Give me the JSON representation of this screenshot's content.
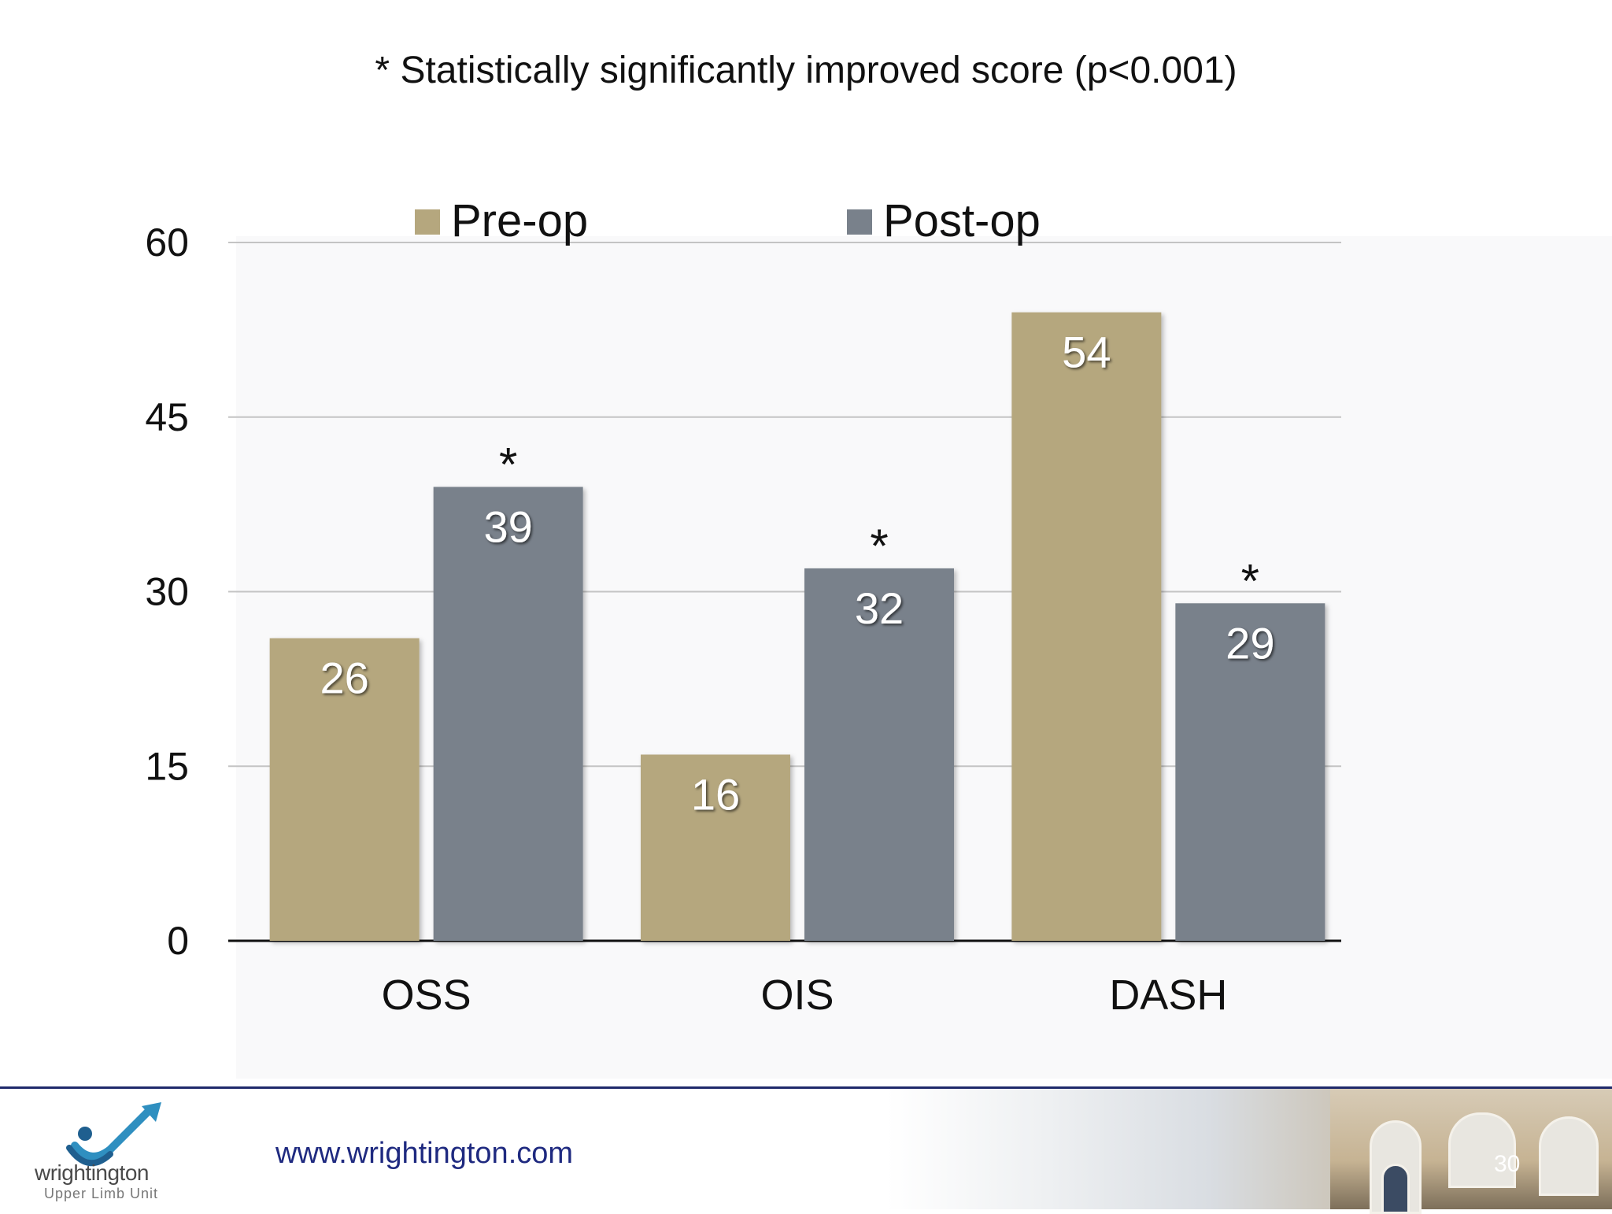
{
  "slide": {
    "subtitle": "* Statistically significantly improved score (p<0.001)",
    "url": "www.wrightington.com",
    "page_number": "30",
    "logo_name": "wrightington",
    "logo_subtitle": "Upper Limb Unit"
  },
  "chart_data": {
    "type": "bar",
    "title": "",
    "categories": [
      "OSS",
      "OIS",
      "DASH"
    ],
    "series": [
      {
        "name": "Pre-op",
        "color": "#b5a77e",
        "values": [
          26,
          16,
          54
        ],
        "significant": [
          false,
          false,
          false
        ]
      },
      {
        "name": "Post-op",
        "color": "#79818b",
        "values": [
          39,
          32,
          29
        ],
        "significant": [
          true,
          true,
          true
        ]
      }
    ],
    "significance_marker": "*",
    "ylim": [
      0,
      60
    ],
    "yticks": [
      0,
      15,
      30,
      45,
      60
    ],
    "grid": true,
    "legend": "top",
    "xlabel": "",
    "ylabel": ""
  }
}
